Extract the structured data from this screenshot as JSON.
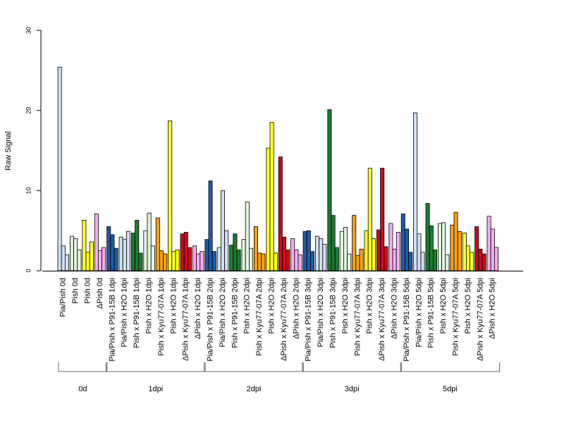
{
  "chart_data": {
    "type": "bar",
    "ylabel": "Raw Signal",
    "ylim": [
      0,
      30
    ],
    "yticks": [
      0,
      10,
      20,
      30
    ],
    "grid": false,
    "colors": {
      "lightblue": "#cfe0f2",
      "darkblue": "#1f5ba8",
      "green": "#1e7a32",
      "palegreen": "#e3f3de",
      "orange": "#f5a11c",
      "yellow": "#ffff2a",
      "red": "#cc0a1e",
      "pink": "#f4aef0"
    },
    "categories": [
      {
        "label": "Pia/Pish 0d",
        "color": "lightblue",
        "values": [
          25.4,
          3.1,
          2.0
        ]
      },
      {
        "label": "Pish 0d",
        "color": "palegreen",
        "values": [
          4.3,
          4.0,
          2.6
        ]
      },
      {
        "label": "Pish 0d",
        "color": "yellow",
        "values": [
          6.3,
          2.3,
          3.6
        ]
      },
      {
        "label": "ΔPish 0d",
        "color": "pink",
        "values": [
          7.1,
          2.5,
          2.9
        ]
      },
      {
        "label": "Pia/Pish x P91-15B 1dpi",
        "color": "darkblue",
        "values": [
          5.5,
          4.5,
          2.8
        ]
      },
      {
        "label": "Pia/Pish x H2O 1dpi",
        "color": "lightblue",
        "values": [
          4.2,
          3.9,
          4.9
        ]
      },
      {
        "label": "Pish x P91-15B 1dpi",
        "color": "green",
        "values": [
          4.7,
          6.3,
          2.2
        ]
      },
      {
        "label": "Pish x H2O 1dpi",
        "color": "palegreen",
        "values": [
          5.0,
          7.2,
          3.1
        ]
      },
      {
        "label": "Pish x Kyu77-07A 1dpi",
        "color": "orange",
        "values": [
          6.6,
          2.5,
          2.1
        ]
      },
      {
        "label": "Pish x H2O 1dpi",
        "color": "yellow",
        "values": [
          18.7,
          2.4,
          2.6
        ]
      },
      {
        "label": "ΔPish x Kyu77-07A 1dpi",
        "color": "red",
        "values": [
          4.6,
          4.8,
          2.9
        ]
      },
      {
        "label": "ΔPish x H2O 1dpi",
        "color": "pink",
        "values": [
          3.1,
          2.1,
          2.4
        ]
      },
      {
        "label": "Pia/Pish x P91-15B 2dpi",
        "color": "darkblue",
        "values": [
          3.9,
          11.2,
          2.4
        ]
      },
      {
        "label": "Pia/Pish x H2O 2dpi",
        "color": "lightblue",
        "values": [
          2.9,
          10.0,
          5.0
        ]
      },
      {
        "label": "Pish x P91-15B 2dpi",
        "color": "green",
        "values": [
          3.2,
          4.6,
          2.6
        ]
      },
      {
        "label": "Pish x H2O 2dpi",
        "color": "palegreen",
        "values": [
          3.9,
          8.6,
          2.8
        ]
      },
      {
        "label": "Pish x Kyu77-07A 2dpi",
        "color": "orange",
        "values": [
          5.5,
          2.2,
          2.1
        ]
      },
      {
        "label": "Pish x H2O 2dpi",
        "color": "yellow",
        "values": [
          15.3,
          18.5,
          2.2
        ]
      },
      {
        "label": "ΔPish x Kyu77-07A 2dpi",
        "color": "red",
        "values": [
          14.2,
          4.2,
          2.6
        ]
      },
      {
        "label": "ΔPish x H2O 2dpi",
        "color": "pink",
        "values": [
          4.0,
          2.6,
          2.0
        ]
      },
      {
        "label": "Pia/Pish x P91-15B 3dpi",
        "color": "darkblue",
        "values": [
          4.9,
          5.0,
          2.4
        ]
      },
      {
        "label": "Pia/Pish x H2O 3dpi",
        "color": "lightblue",
        "values": [
          4.3,
          4.0,
          3.3
        ]
      },
      {
        "label": "Pish x P91-15B 3dpi",
        "color": "green",
        "values": [
          20.1,
          6.9,
          2.9
        ]
      },
      {
        "label": "Pish x H2O 3dpi",
        "color": "palegreen",
        "values": [
          4.9,
          5.4,
          2.1
        ]
      },
      {
        "label": "Pish x Kyu77-07A 3dpi",
        "color": "orange",
        "values": [
          6.9,
          1.9,
          2.7
        ]
      },
      {
        "label": "Pish x H2O 3dpi",
        "color": "yellow",
        "values": [
          5.0,
          12.8,
          4.0
        ]
      },
      {
        "label": "ΔPish x Kyu77-07A 3dpi",
        "color": "red",
        "values": [
          5.1,
          12.8,
          3.0
        ]
      },
      {
        "label": "ΔPish x H2O 3dpi",
        "color": "pink",
        "values": [
          5.9,
          2.7,
          4.8
        ]
      },
      {
        "label": "Pia/Pish x P91-15B 5dpi",
        "color": "darkblue",
        "values": [
          7.1,
          5.2,
          2.3
        ]
      },
      {
        "label": "Pia/Pish x H2O 5dpi",
        "color": "lightblue",
        "values": [
          19.7,
          4.6,
          2.3
        ]
      },
      {
        "label": "Pish x P91-15B 5dpi",
        "color": "green",
        "values": [
          8.4,
          5.6,
          2.6
        ]
      },
      {
        "label": "Pish x H2O 5dpi",
        "color": "palegreen",
        "values": [
          5.9,
          6.0,
          2.0
        ]
      },
      {
        "label": "Pish x Kyu77-07A 5dpi",
        "color": "orange",
        "values": [
          5.7,
          7.3,
          4.9
        ]
      },
      {
        "label": "Pish x H2O 5dpi",
        "color": "yellow",
        "values": [
          4.7,
          3.1,
          2.3
        ]
      },
      {
        "label": "ΔPish x Kyu77-07A 5dpi",
        "color": "red",
        "values": [
          5.5,
          2.7,
          2.1
        ]
      },
      {
        "label": "ΔPish x H2O 5dpi",
        "color": "pink",
        "values": [
          6.8,
          5.2,
          2.9
        ]
      }
    ],
    "groups": [
      {
        "label": "0d",
        "start": 0,
        "end": 3
      },
      {
        "label": "1dpi",
        "start": 4,
        "end": 11
      },
      {
        "label": "2dpi",
        "start": 12,
        "end": 19
      },
      {
        "label": "3dpi",
        "start": 20,
        "end": 27
      },
      {
        "label": "5dpi",
        "start": 28,
        "end": 35
      }
    ]
  }
}
